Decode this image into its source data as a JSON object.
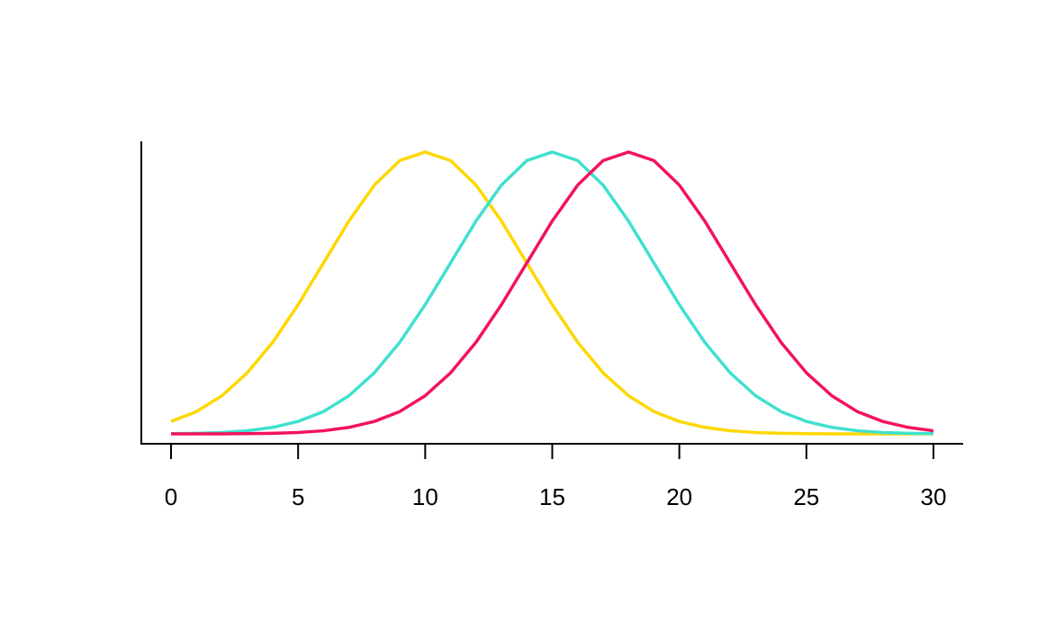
{
  "chart_data": {
    "type": "line",
    "x": [
      0,
      1,
      2,
      3,
      4,
      5,
      6,
      7,
      8,
      9,
      10,
      11,
      12,
      13,
      14,
      15,
      16,
      17,
      18,
      19,
      20,
      21,
      22,
      23,
      24,
      25,
      26,
      27,
      28,
      29,
      30
    ],
    "series": [
      {
        "color": "#FFD700",
        "values": [
          0.0044,
          0.0079,
          0.0135,
          0.0216,
          0.0324,
          0.0457,
          0.0605,
          0.0753,
          0.088,
          0.0967,
          0.0997,
          0.0967,
          0.088,
          0.0753,
          0.0605,
          0.0457,
          0.0324,
          0.0216,
          0.0135,
          0.0079,
          0.0044,
          0.0023,
          0.0011,
          0.0005,
          0.0002,
          0.0001,
          0,
          0,
          0,
          0,
          0
        ]
      },
      {
        "color": "#40E0D0",
        "values": [
          0.0001,
          0.0002,
          0.0005,
          0.0011,
          0.0023,
          0.0044,
          0.0079,
          0.0135,
          0.0216,
          0.0324,
          0.0457,
          0.0605,
          0.0753,
          0.088,
          0.0967,
          0.0997,
          0.0967,
          0.088,
          0.0753,
          0.0605,
          0.0457,
          0.0324,
          0.0216,
          0.0135,
          0.0079,
          0.0044,
          0.0023,
          0.0011,
          0.0005,
          0.0002,
          0.0001
        ]
      },
      {
        "color": "#F2135D",
        "values": [
          0,
          0,
          0,
          0.0001,
          0.0002,
          0.0005,
          0.0011,
          0.0023,
          0.0044,
          0.0079,
          0.0135,
          0.0216,
          0.0324,
          0.0457,
          0.0605,
          0.0753,
          0.088,
          0.0967,
          0.0997,
          0.0967,
          0.088,
          0.0753,
          0.0605,
          0.0457,
          0.0324,
          0.0216,
          0.0135,
          0.0079,
          0.0044,
          0.0023,
          0.0011
        ]
      }
    ],
    "xlim": [
      -1.17,
      31.17
    ],
    "ylim": [
      -0.0035,
      0.1035
    ],
    "xticks": [
      0,
      5,
      10,
      15,
      20,
      25,
      30
    ]
  }
}
